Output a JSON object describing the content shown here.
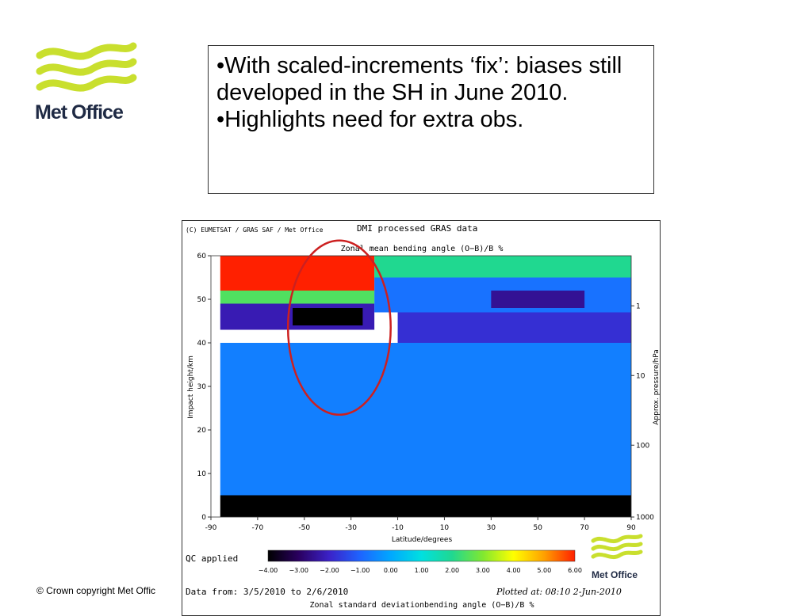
{
  "logo": {
    "brand": "Met Office",
    "wave_color": "#c9df2e"
  },
  "textbox": {
    "bullets": [
      "•With scaled-increments ‘fix’: biases still developed in the SH in June 2010.",
      "•Highlights need for extra obs."
    ]
  },
  "footer": {
    "copyright": "© Crown copyright   Met Offic"
  },
  "figure": {
    "credit": "(C) EUMETSAT / GRAS SAF / Met Office",
    "title": "DMI processed GRAS data",
    "qc": "QC applied",
    "data_range": "Data from: 3/5/2010 to 2/6/2010",
    "plotted": "Plotted at: 08:10   2-Jun-2010",
    "bottom_title": "Zonal standard deviationbending angle (O−B)/B %",
    "logo_text": "Met Office"
  },
  "chart_data": {
    "type": "heatmap",
    "title": "Zonal mean bending angle (O−B)/B %",
    "xlabel": "Latitude/degrees",
    "ylabel": "Impact height/km",
    "y2label": "Approx. pressure/hPa",
    "xlim": [
      -90,
      90
    ],
    "ylim": [
      0,
      60
    ],
    "xticks": [
      -90,
      -70,
      -50,
      -30,
      -10,
      10,
      30,
      50,
      70,
      90
    ],
    "yticks": [
      0,
      10,
      20,
      30,
      40,
      50,
      60
    ],
    "y2ticks": [
      {
        "label": "1",
        "height": 48.5
      },
      {
        "label": "10",
        "height": 32.5
      },
      {
        "label": "100",
        "height": 16.5
      },
      {
        "label": "1000",
        "height": 0
      }
    ],
    "colorbar": {
      "min": -4,
      "max": 6,
      "ticks": [
        "−4.00",
        "−3.00",
        "−2.00",
        "−1.00",
        "0.00",
        "1.00",
        "2.00",
        "3.00",
        "4.00",
        "5.00",
        "6.00"
      ],
      "stops": [
        "#000000",
        "#2a0060",
        "#3b22c8",
        "#1e64ff",
        "#00a8ff",
        "#00e0e0",
        "#20d890",
        "#80e830",
        "#ffff00",
        "#ffa000",
        "#ff2000"
      ]
    },
    "regions": [
      {
        "lat": [
          -86,
          -20
        ],
        "height": [
          52,
          60
        ],
        "value": 6
      },
      {
        "lat": [
          -20,
          90
        ],
        "height": [
          55,
          60
        ],
        "value": 2
      },
      {
        "lat": [
          -86,
          -20
        ],
        "height": [
          49,
          52
        ],
        "value": 2.5
      },
      {
        "lat": [
          -86,
          -20
        ],
        "height": [
          43,
          49
        ],
        "value": -2.2
      },
      {
        "lat": [
          -55,
          -25
        ],
        "height": [
          44,
          48
        ],
        "value": -4
      },
      {
        "lat": [
          -20,
          90
        ],
        "height": [
          47,
          55
        ],
        "value": -0.8
      },
      {
        "lat": [
          30,
          70
        ],
        "height": [
          48,
          52
        ],
        "value": -2.5
      },
      {
        "lat": [
          -10,
          90
        ],
        "height": [
          40,
          47
        ],
        "value": -1.8
      },
      {
        "lat": [
          -86,
          90
        ],
        "height": [
          5,
          40
        ],
        "value": -0.6
      },
      {
        "lat": [
          -86,
          90
        ],
        "height": [
          0,
          5
        ],
        "value": -4
      }
    ],
    "highlight": {
      "center_lat": -35,
      "center_height": 43.5,
      "lat_radius": 22,
      "height_radius": 20,
      "color": "#cc2020"
    }
  }
}
